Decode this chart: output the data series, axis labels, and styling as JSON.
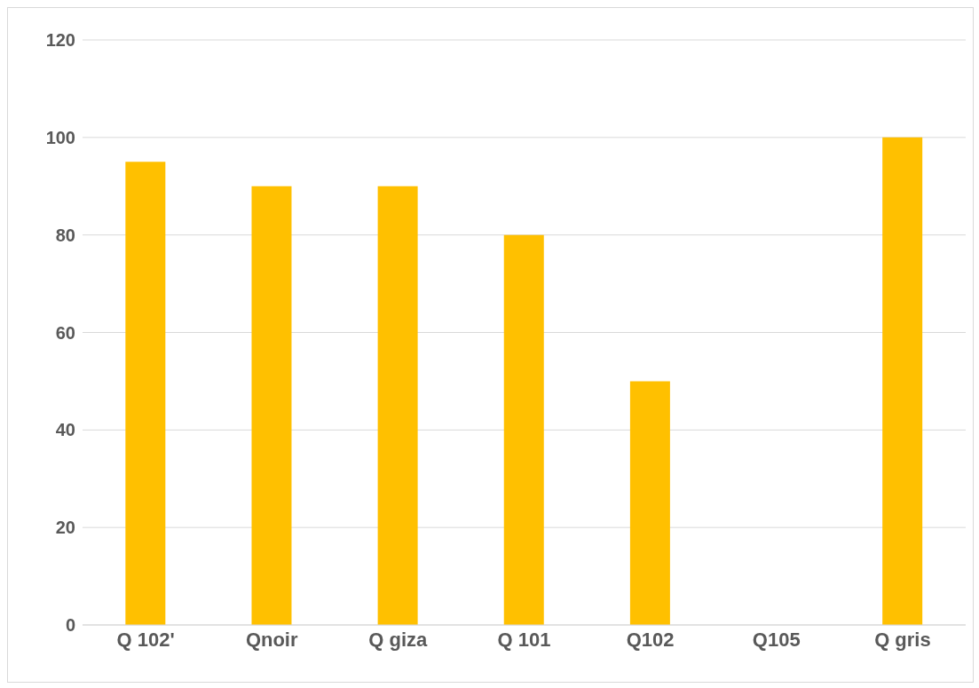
{
  "chart_data": {
    "type": "bar",
    "categories": [
      "Q 102'",
      "Qnoir",
      "Q giza",
      "Q 101",
      "Q102",
      "Q105",
      "Q gris"
    ],
    "values": [
      95,
      90,
      90,
      80,
      50,
      0,
      100
    ],
    "color": "#ffc000",
    "ylim": [
      0,
      120
    ],
    "yticks": [
      0,
      20,
      40,
      60,
      80,
      100,
      120
    ],
    "grid": "y"
  }
}
